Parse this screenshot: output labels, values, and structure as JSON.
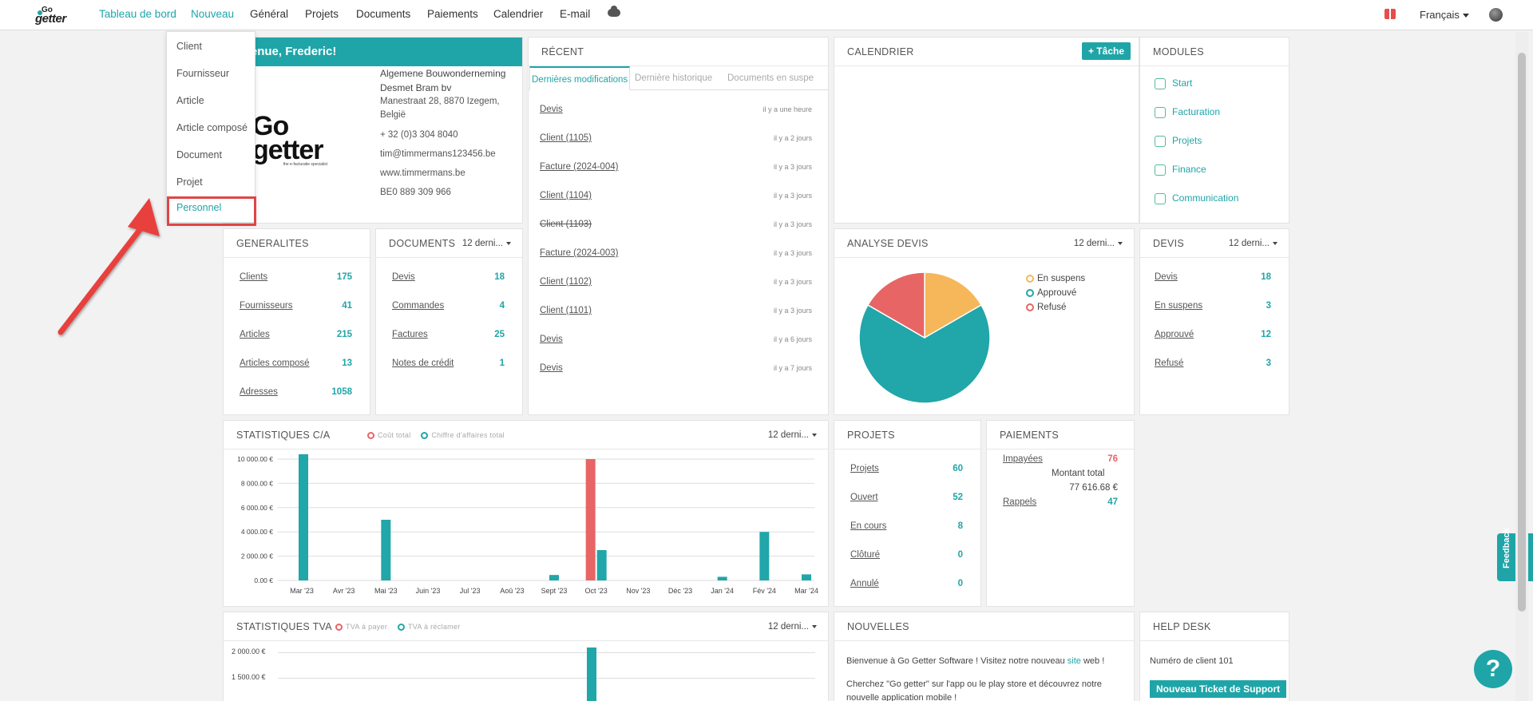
{
  "nav": {
    "logo_top": "Go",
    "logo_bottom": "getter",
    "items": [
      "Tableau de bord",
      "Nouveau",
      "Général",
      "Projets",
      "Documents",
      "Paiements",
      "Calendrier",
      "E-mail"
    ],
    "language": "Français"
  },
  "dropdown": {
    "items": [
      "Client",
      "Fournisseur",
      "Article",
      "Article composé",
      "Document",
      "Projet",
      "Personnel"
    ]
  },
  "welcome": {
    "title": "envenue, Frederic!",
    "logo_big_1": "Go",
    "logo_big_2": "getter",
    "logo_small": "the e-facturatie specialist",
    "company_1": "Algemene Bouwonderneming",
    "company_2": "Desmet Bram bv",
    "address_1": "Manestraat 28, 8870 Izegem,",
    "address_2": "België",
    "phone": "+ 32 (0)3 304 8040",
    "email": "tim@timmermans123456.be",
    "website": "www.timmermans.be",
    "vat": "BE0 889 309 966"
  },
  "recent": {
    "title": "RÉCENT",
    "tabs": [
      "Dernières modifications",
      "Dernière historique",
      "Documents en suspe"
    ],
    "items": [
      {
        "label": "Devis",
        "time": "il y a une heure"
      },
      {
        "label": "Client (1105)",
        "time": "il y a 2 jours"
      },
      {
        "label": "Facture (2024-004)",
        "time": "il y a 3 jours"
      },
      {
        "label": "Client (1104)",
        "time": "il y a 3 jours"
      },
      {
        "label": "Client (1103)",
        "time": "il y a 3 jours"
      },
      {
        "label": "Facture (2024-003)",
        "time": "il y a 3 jours"
      },
      {
        "label": "Client (1102)",
        "time": "il y a 3 jours"
      },
      {
        "label": "Client (1101)",
        "time": "il y a 3 jours"
      },
      {
        "label": "Devis",
        "time": "il y a 6 jours"
      },
      {
        "label": "Devis",
        "time": "il y a 7 jours"
      }
    ]
  },
  "calendar": {
    "title": "CALENDRIER",
    "button": "+ Tâche"
  },
  "modules": {
    "title": "MODULES",
    "items": [
      "Start",
      "Facturation",
      "Projets",
      "Finance",
      "Communication"
    ]
  },
  "generalites": {
    "title": "GENERALITES",
    "rows": [
      {
        "label": "Clients",
        "value": "175"
      },
      {
        "label": "Fournisseurs",
        "value": "41"
      },
      {
        "label": "Articles",
        "value": "215"
      },
      {
        "label": "Articles composé",
        "value": "13"
      },
      {
        "label": "Adresses",
        "value": "1058"
      }
    ]
  },
  "documents": {
    "title": "DOCUMENTS",
    "period": "12 derni...",
    "rows": [
      {
        "label": "Devis",
        "value": "18"
      },
      {
        "label": "Commandes",
        "value": "4"
      },
      {
        "label": "Factures",
        "value": "25"
      },
      {
        "label": "Notes de crédit",
        "value": "1"
      }
    ]
  },
  "analyse": {
    "title": "ANALYSE DEVIS",
    "period": "12 derni...",
    "legend": [
      "En suspens",
      "Approuvé",
      "Refusé"
    ],
    "colors": [
      "#f5b75a",
      "#21a6a9",
      "#e86565"
    ]
  },
  "devis": {
    "title": "DEVIS",
    "period": "12 derni...",
    "rows": [
      {
        "label": "Devis",
        "value": "18"
      },
      {
        "label": "En suspens",
        "value": "3"
      },
      {
        "label": "Approuvé",
        "value": "12"
      },
      {
        "label": "Refusé",
        "value": "3"
      }
    ]
  },
  "stat_ca": {
    "title": "STATISTIQUES C/A",
    "period": "12 derni...",
    "legend": [
      "Coût total",
      "Chiffre d'affaires total"
    ]
  },
  "projets": {
    "title": "PROJETS",
    "rows": [
      {
        "label": "Projets",
        "value": "60"
      },
      {
        "label": "Ouvert",
        "value": "52"
      },
      {
        "label": "En cours",
        "value": "8"
      },
      {
        "label": "Clôturé",
        "value": "0"
      },
      {
        "label": "Annulé",
        "value": "0"
      }
    ]
  },
  "paiements": {
    "title": "PAIEMENTS",
    "impayees_label": "Impayées",
    "impayees_value": "76",
    "montant_label": "Montant total",
    "montant_value": "77 616.68 €",
    "rappels_label": "Rappels",
    "rappels_value": "47"
  },
  "stat_tva": {
    "title": "STATISTIQUES TVA",
    "period": "12 derni...",
    "legend": [
      "TVA à payer",
      "TVA à réclamer"
    ],
    "yticks": [
      "2 000.00 €",
      "1 500.00 €"
    ]
  },
  "nouvelles": {
    "title": "NOUVELLES",
    "line1_a": "Bienvenue à Go Getter Software ! Visitez notre nouveau ",
    "line1_link": "site",
    "line1_b": " web !",
    "line2": "Cherchez \"Go getter\" sur l'app ou le play store et découvrez notre",
    "line3": "nouvelle application mobile !"
  },
  "helpdesk": {
    "title": "HELP DESK",
    "client_label": "Numéro de client ",
    "client_value": "101",
    "button": "Nouveau Ticket de Support"
  },
  "feedback": "Feedback",
  "help_icon": "?",
  "chart_data": [
    {
      "type": "pie",
      "categories": [
        "En suspens",
        "Approuvé",
        "Refusé"
      ],
      "values": [
        3,
        12,
        3
      ]
    },
    {
      "type": "bar",
      "title": "STATISTIQUES C/A",
      "categories": [
        "Mar '23",
        "Avr '23",
        "Mai '23",
        "Juin '23",
        "Jul '23",
        "Aoû '23",
        "Sept '23",
        "Oct '23",
        "Nov '23",
        "Déc '23",
        "Jan '24",
        "Fév '24",
        "Mar '24"
      ],
      "yticks": [
        "10 000.00 €",
        "8 000.00 €",
        "6 000.00 €",
        "4 000.00 €",
        "2 000.00 €",
        "0.00 €"
      ],
      "ylim": [
        0,
        10000
      ],
      "series": [
        {
          "name": "Coût total",
          "color": "#e86565",
          "values": [
            0,
            0,
            0,
            0,
            0,
            0,
            0,
            10000,
            0,
            0,
            0,
            0,
            0
          ]
        },
        {
          "name": "Chiffre d'affaires total",
          "color": "#21a6a9",
          "values": [
            10400,
            0,
            5000,
            0,
            0,
            0,
            450,
            2500,
            0,
            0,
            300,
            4000,
            500
          ]
        }
      ]
    }
  ]
}
